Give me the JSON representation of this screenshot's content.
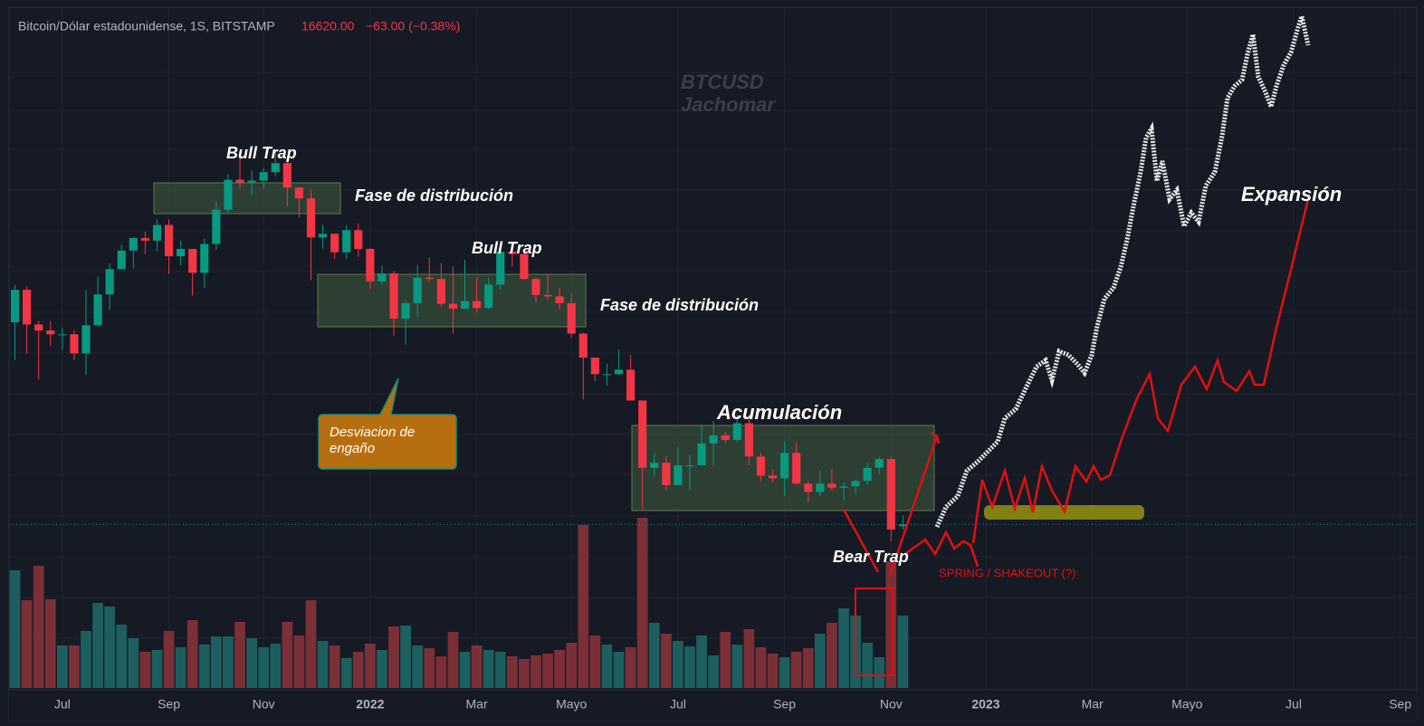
{
  "header": {
    "symbol": "Bitcoin/Dólar estadounidense, 1S, BITSTAMP",
    "last": "16620.00",
    "change": "−63.00 (−0.38%)"
  },
  "watermark": [
    "BTCUSD",
    "Jachomar"
  ],
  "annotations": [
    "Bull Trap",
    "Fase de distribución",
    "Bull Trap",
    "Fase de distribución",
    "Acumulación",
    "Bear Trap",
    "SPRING / SHAKEOUT (?)",
    "Expansión",
    "Desviacion de engaño"
  ],
  "chart_data": {
    "type": "candlestick",
    "log_scale": true,
    "up_color": "#089981",
    "down_color": "#f23645",
    "volume_up_color": "#1d5e5f",
    "volume_down_color": "#7b2f37",
    "xlim": [
      -0.5,
      118.4
    ],
    "ylim": [
      8930,
      121700
    ],
    "vlim": [
      0,
      200
    ],
    "xticks": [
      {
        "value": 4,
        "label": "Jul"
      },
      {
        "value": 13,
        "label": "Sep"
      },
      {
        "value": 21,
        "label": "Nov"
      },
      {
        "value": 30,
        "label": "2022"
      },
      {
        "value": 39,
        "label": "Mar"
      },
      {
        "value": 47,
        "label": "Mayo"
      },
      {
        "value": 56,
        "label": "Jul"
      },
      {
        "value": 65,
        "label": "Sep"
      },
      {
        "value": 74,
        "label": "Nov"
      },
      {
        "value": 82,
        "label": "2023"
      },
      {
        "value": 91,
        "label": "Mar"
      },
      {
        "value": 99,
        "label": "Mayo"
      },
      {
        "value": 108,
        "label": "Jul"
      },
      {
        "value": 117,
        "label": "Sep"
      }
    ],
    "open": [
      35800,
      40500,
      35500,
      34700,
      34200,
      34200,
      31800,
      35400,
      39800,
      43800,
      47000,
      49300,
      48800,
      51800,
      46000,
      47300,
      43200,
      48200,
      54900,
      61500,
      60900,
      61300,
      63300,
      65500,
      59700,
      57300,
      49400,
      50100,
      46700,
      50800,
      47300,
      41800,
      43100,
      36300,
      38500,
      42400,
      42200,
      38400,
      37700,
      38800,
      37800,
      41300,
      46800,
      46400,
      42200,
      39700,
      39500,
      38500,
      34300,
      31300,
      29400,
      29400,
      29900,
      26600,
      20600,
      21000,
      19300,
      20800,
      20800,
      22600,
      23300,
      22900,
      24400,
      21500,
      20000,
      19800,
      21800,
      19400,
      18800,
      19400,
      19100,
      19200,
      19600,
      20600,
      21300,
      16500
    ],
    "high": [
      41300,
      41000,
      36000,
      36000,
      35100,
      34700,
      40500,
      42600,
      44800,
      48100,
      49400,
      50500,
      52900,
      52900,
      48800,
      47300,
      49200,
      56600,
      62900,
      67000,
      63700,
      64300,
      69000,
      66400,
      59700,
      59200,
      51900,
      50100,
      51800,
      52100,
      47500,
      44400,
      43500,
      38900,
      44500,
      45800,
      44800,
      44200,
      45400,
      42500,
      42400,
      48200,
      48100,
      47200,
      42400,
      42900,
      40800,
      40000,
      34400,
      31300,
      30600,
      32300,
      31600,
      26600,
      21800,
      21500,
      22300,
      21600,
      24300,
      24600,
      23600,
      25200,
      25200,
      21800,
      20500,
      22800,
      22700,
      19600,
      20400,
      20500,
      19500,
      19700,
      21000,
      21500,
      21500,
      17190
    ],
    "low": [
      31000,
      31800,
      28800,
      32700,
      32200,
      31000,
      29300,
      35200,
      37500,
      43800,
      43900,
      46400,
      46900,
      43000,
      44400,
      39600,
      40800,
      47100,
      54300,
      59500,
      58000,
      59500,
      62300,
      55600,
      53300,
      42000,
      47400,
      45500,
      45600,
      45900,
      40600,
      41300,
      34000,
      32900,
      36600,
      41800,
      38000,
      34300,
      37600,
      37200,
      37600,
      40500,
      44200,
      42100,
      38600,
      38900,
      37600,
      33700,
      26700,
      28600,
      28100,
      29300,
      26600,
      17600,
      20000,
      18900,
      19300,
      18900,
      20800,
      20700,
      22600,
      22700,
      20800,
      19600,
      19500,
      18500,
      19300,
      18100,
      18500,
      18900,
      18200,
      18700,
      19300,
      20100,
      15600,
      16290
    ],
    "close": [
      40500,
      35500,
      34700,
      34200,
      34200,
      31800,
      35400,
      39800,
      43800,
      47000,
      49300,
      48800,
      51800,
      46000,
      47300,
      43200,
      48200,
      54900,
      61500,
      60900,
      61300,
      63300,
      65500,
      59700,
      57300,
      49400,
      50100,
      46700,
      50800,
      47300,
      41800,
      43100,
      36300,
      38500,
      42400,
      42200,
      38400,
      37700,
      38800,
      37800,
      41300,
      46800,
      46400,
      42200,
      39700,
      39500,
      38500,
      34300,
      31300,
      29400,
      29400,
      29900,
      26600,
      20600,
      21000,
      19300,
      20800,
      20800,
      22600,
      23300,
      22900,
      24400,
      21500,
      20000,
      19800,
      21800,
      19400,
      18800,
      19400,
      19100,
      19200,
      19600,
      20600,
      21300,
      16300,
      16620
    ],
    "volume": [
      130,
      97,
      135,
      98,
      47,
      47,
      63,
      94,
      90,
      70,
      55,
      40,
      42,
      63,
      45,
      75,
      48,
      57,
      57,
      73,
      55,
      45,
      49,
      73,
      58,
      97,
      52,
      47,
      33,
      40,
      49,
      42,
      68,
      69,
      47,
      44,
      35,
      62,
      40,
      47,
      42,
      40,
      35,
      32,
      36,
      38,
      42,
      50,
      180,
      58,
      48,
      40,
      45,
      188,
      72,
      60,
      52,
      46,
      58,
      36,
      62,
      48,
      65,
      45,
      38,
      34,
      40,
      44,
      60,
      72,
      88,
      80,
      50,
      34,
      140,
      80
    ]
  }
}
